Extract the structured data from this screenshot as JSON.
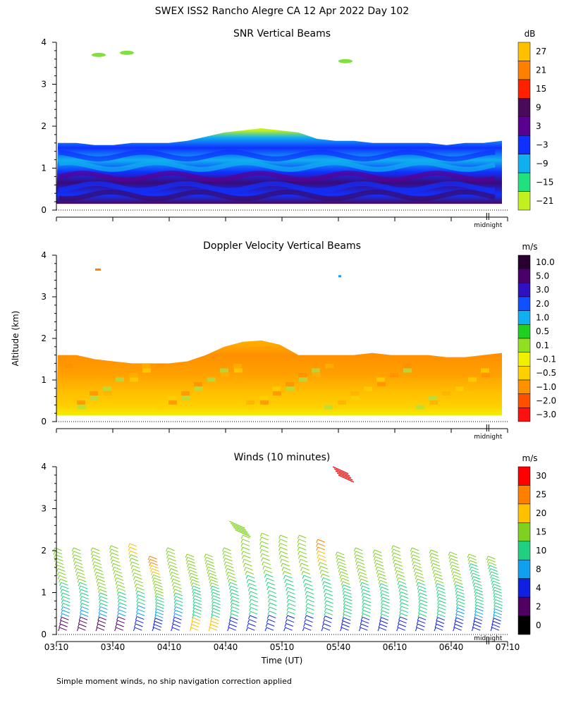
{
  "title": "SWEX ISS2 Rancho Alegre CA  12 Apr 2022 Day 102",
  "y_axis_label": "Altitude (km)",
  "x_axis_label": "Time (UT)",
  "x_tick_labels": [
    "03:10",
    "03:40",
    "04:10",
    "04:40",
    "05:10",
    "05:40",
    "06:10",
    "06:40",
    "07:10"
  ],
  "midnight_label": "midnight",
  "footnote": "Simple moment winds, no ship navigation correction applied",
  "chart_data": [
    {
      "type": "heatmap",
      "title": "SNR Vertical Beams",
      "ylabel": "Altitude (km)",
      "xlabel": "Time (UT)",
      "xlim": [
        "03:10",
        "07:10"
      ],
      "ylim": [
        0,
        4
      ],
      "y_ticks": [
        0,
        1,
        2,
        3,
        4
      ],
      "colorbar": {
        "unit": "dB",
        "labels": [
          "27",
          "21",
          "15",
          "9",
          "3",
          "−3",
          "−9",
          "−15",
          "−21"
        ],
        "colors": [
          "#ffc000",
          "#ff8000",
          "#ff2000",
          "#4a0a5a",
          "#5a0090",
          "#1030ff",
          "#10b0f0",
          "#20e080",
          "#c0f020"
        ]
      },
      "layer_top_km": [
        1.6,
        1.6,
        1.55,
        1.55,
        1.6,
        1.6,
        1.6,
        1.65,
        1.75,
        1.85,
        1.9,
        1.95,
        1.9,
        1.85,
        1.7,
        1.65,
        1.65,
        1.6,
        1.6,
        1.6,
        1.6,
        1.55,
        1.6,
        1.6,
        1.65
      ]
    },
    {
      "type": "heatmap",
      "title": "Doppler Velocity Vertical Beams",
      "ylabel": "Altitude (km)",
      "xlabel": "Time (UT)",
      "xlim": [
        "03:10",
        "07:10"
      ],
      "ylim": [
        0,
        4
      ],
      "y_ticks": [
        0,
        1,
        2,
        3,
        4
      ],
      "colorbar": {
        "unit": "m/s",
        "labels": [
          "10.0",
          "5.0",
          "3.0",
          "2.0",
          "1.0",
          "0.5",
          "0.1",
          "−0.1",
          "−0.5",
          "−1.0",
          "−2.0",
          "−3.0"
        ],
        "colors": [
          "#2a0030",
          "#4a006a",
          "#3010c0",
          "#1050ff",
          "#10b0f0",
          "#20d020",
          "#90e020",
          "#f0f000",
          "#ffd000",
          "#ff9000",
          "#ff5000",
          "#ff1010"
        ]
      },
      "layer_top_km": [
        1.6,
        1.6,
        1.5,
        1.45,
        1.4,
        1.4,
        1.4,
        1.45,
        1.6,
        1.8,
        1.92,
        1.95,
        1.85,
        1.6,
        1.6,
        1.6,
        1.6,
        1.65,
        1.6,
        1.6,
        1.6,
        1.55,
        1.55,
        1.6,
        1.65
      ]
    },
    {
      "type": "scatter",
      "title": "Winds (10 minutes)",
      "ylabel": "Altitude (km)",
      "xlabel": "Time (UT)",
      "xlim": [
        "03:10",
        "07:10"
      ],
      "ylim": [
        0,
        4
      ],
      "y_ticks": [
        0,
        1,
        2,
        3,
        4
      ],
      "colorbar": {
        "unit": "m/s",
        "labels": [
          "30",
          "25",
          "20",
          "15",
          "10",
          "8",
          "4",
          "2",
          "0"
        ],
        "colors": [
          "#ff0000",
          "#ff8000",
          "#ffc000",
          "#80d020",
          "#20d080",
          "#10a0f0",
          "#1020e0",
          "#500060",
          "#000000"
        ]
      },
      "profile_times": [
        "03:15",
        "03:25",
        "03:35",
        "03:45",
        "03:55",
        "04:05",
        "04:15",
        "04:25",
        "04:35",
        "04:45",
        "04:55",
        "05:05",
        "05:15",
        "05:25",
        "05:35",
        "05:45",
        "05:55",
        "06:05",
        "06:15",
        "06:25",
        "06:35",
        "06:45",
        "06:55",
        "07:05"
      ],
      "profile_top_km": [
        2.0,
        2.0,
        2.0,
        2.05,
        2.1,
        1.8,
        2.0,
        1.85,
        1.85,
        2.0,
        2.3,
        2.35,
        2.3,
        2.3,
        2.2,
        1.9,
        2.0,
        1.95,
        2.05,
        2.0,
        1.95,
        1.9,
        1.85,
        1.8
      ],
      "profile_speeds_ms": [
        [
          3,
          8,
          12,
          14,
          16,
          18,
          18
        ],
        [
          3,
          8,
          12,
          14,
          16,
          18,
          18
        ],
        [
          3,
          8,
          13,
          15,
          16,
          17,
          18
        ],
        [
          3,
          8,
          13,
          15,
          16,
          17,
          18
        ],
        [
          4,
          9,
          13,
          15,
          16,
          18,
          20
        ],
        [
          4,
          9,
          13,
          15,
          16,
          22,
          28
        ],
        [
          4,
          9,
          13,
          15,
          16,
          18,
          18
        ],
        [
          20,
          12,
          13,
          14,
          15,
          16,
          17
        ],
        [
          22,
          12,
          13,
          14,
          15,
          16,
          17
        ],
        [
          4,
          10,
          13,
          14,
          15,
          16,
          17
        ],
        [
          4,
          10,
          13,
          14,
          15,
          16,
          17
        ],
        [
          4,
          10,
          13,
          14,
          15,
          16,
          17
        ],
        [
          4,
          10,
          13,
          14,
          15,
          16,
          17
        ],
        [
          4,
          10,
          13,
          14,
          16,
          16,
          17
        ],
        [
          4,
          10,
          13,
          14,
          17,
          22,
          28
        ],
        [
          4,
          10,
          13,
          14,
          15,
          15,
          16
        ],
        [
          4,
          10,
          13,
          14,
          15,
          15,
          16
        ],
        [
          4,
          10,
          13,
          14,
          15,
          15,
          16
        ],
        [
          4,
          10,
          13,
          14,
          15,
          15,
          16
        ],
        [
          4,
          10,
          13,
          14,
          15,
          16,
          17
        ],
        [
          4,
          10,
          13,
          14,
          15,
          16,
          17
        ],
        [
          4,
          9,
          12,
          14,
          15,
          16,
          17
        ],
        [
          4,
          8,
          10,
          12,
          13,
          14,
          15
        ],
        [
          4,
          8,
          10,
          12,
          13,
          14,
          15
        ]
      ],
      "isolated_barbs": [
        {
          "time": "05:40",
          "alt_km": 3.9,
          "speed_ms": 30
        },
        {
          "time": "04:45",
          "alt_km": 2.6,
          "speed_ms": 18
        }
      ]
    }
  ]
}
